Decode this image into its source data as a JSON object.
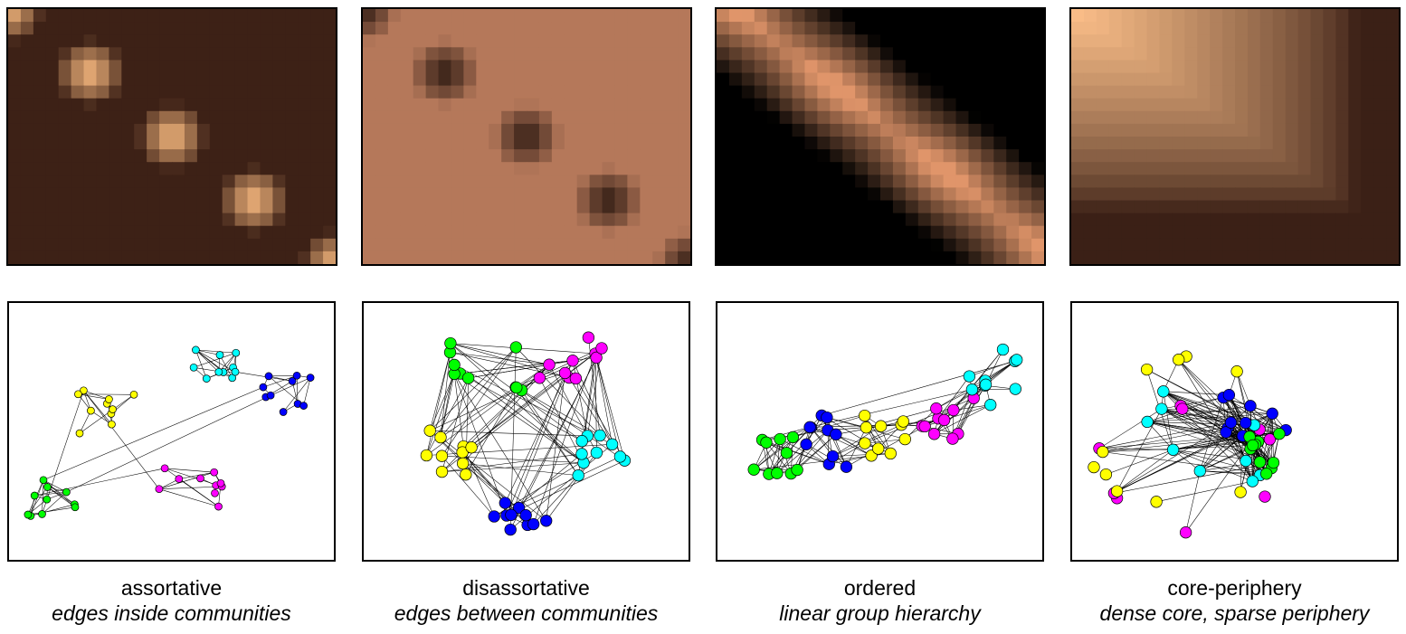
{
  "panels": [
    {
      "name": "assortative",
      "title": "assortative",
      "subtitle": "edges inside communities",
      "matrix_colors": [
        "#3d2116",
        "#fcbd82"
      ],
      "matrix_pattern": "diagonal-blocks-bright",
      "node_size": "small",
      "groups": [
        "yellow",
        "cyan",
        "blue",
        "green",
        "magenta"
      ]
    },
    {
      "name": "disassortative",
      "title": "disassortative",
      "subtitle": "edges between communities",
      "matrix_colors": [
        "#b5785a",
        "#2e1a12"
      ],
      "matrix_pattern": "diagonal-blocks-dark",
      "node_size": "large",
      "groups": [
        "green",
        "magenta",
        "yellow",
        "cyan",
        "blue"
      ]
    },
    {
      "name": "ordered",
      "title": "ordered",
      "subtitle": "linear group hierarchy",
      "matrix_colors": [
        "#000000",
        "#e0956a"
      ],
      "matrix_pattern": "diagonal-band",
      "node_size": "large",
      "groups": [
        "green",
        "blue",
        "yellow",
        "magenta",
        "cyan"
      ]
    },
    {
      "name": "core-periphery",
      "title": "core-periphery",
      "subtitle": "dense core, sparse periphery",
      "matrix_colors": [
        "#3b2016",
        "#fdc08a"
      ],
      "matrix_pattern": "corner-gradient",
      "node_size": "large",
      "groups": [
        "magenta",
        "yellow",
        "cyan",
        "blue",
        "green"
      ]
    }
  ],
  "palette": {
    "yellow": "#ffff00",
    "cyan": "#00ffff",
    "blue": "#0000ff",
    "green": "#00ff00",
    "magenta": "#ff00ff"
  }
}
